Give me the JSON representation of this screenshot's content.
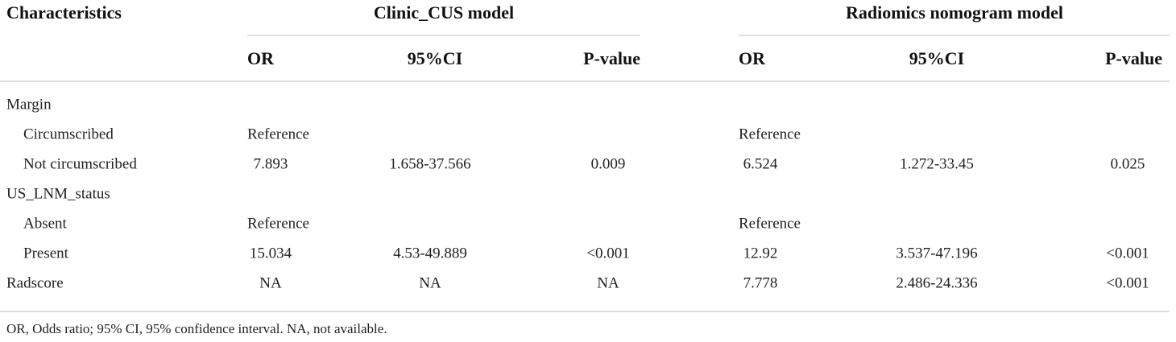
{
  "table": {
    "header": {
      "corner": "Characteristics",
      "groups": [
        "Clinic_CUS model",
        "Radiomics nomogram model"
      ],
      "columns": [
        "OR",
        "95%CI",
        "P-value",
        "OR",
        "95%CI",
        "P-value"
      ]
    },
    "rows": [
      [
        "Margin",
        null,
        null,
        null,
        null,
        null,
        null
      ],
      [
        "Circumscribed",
        "Reference",
        null,
        null,
        "Reference",
        null,
        null
      ],
      [
        "Not circumscribed",
        "7.893",
        "1.658-37.566",
        "0.009",
        "6.524",
        "1.272-33.45",
        "0.025"
      ],
      [
        "US_LNM_status",
        null,
        null,
        null,
        null,
        null,
        null
      ],
      [
        "Absent",
        "Reference",
        null,
        null,
        "Reference",
        null,
        null
      ],
      [
        "Present",
        "15.034",
        "4.53-49.889",
        "<0.001",
        "12.92",
        "3.537-47.196",
        "<0.001"
      ],
      [
        "Radscore",
        "NA",
        "NA",
        "NA",
        "7.778",
        "2.486-24.336",
        "<0.001"
      ]
    ],
    "footnote": "OR, Odds ratio; 95% CI, 95% confidence interval. NA, not available."
  }
}
